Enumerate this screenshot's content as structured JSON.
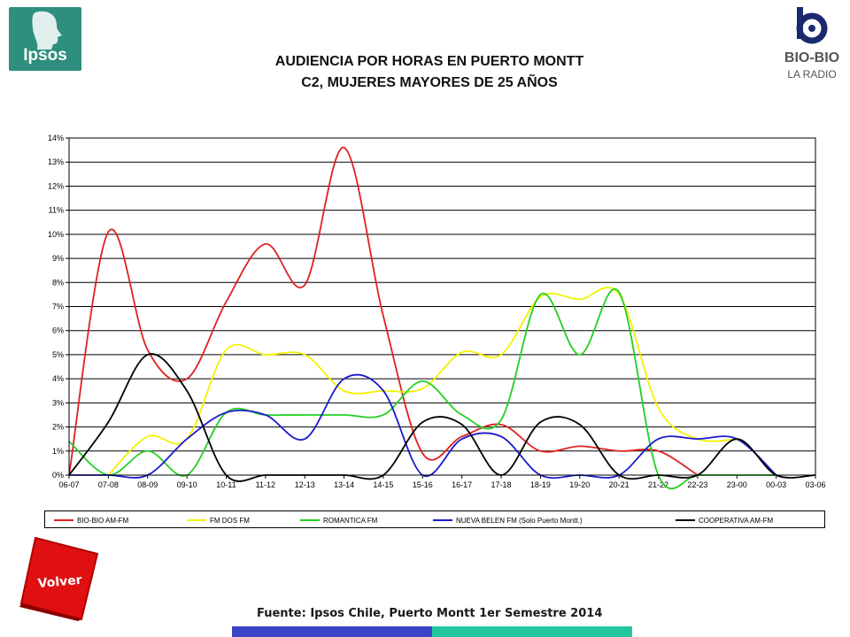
{
  "branding": {
    "ipsos_logo_text": "Ipsos",
    "radio_logo_name": "BIO-BIO",
    "radio_logo_sub": "LA RADIO"
  },
  "title_line1": "AUDIENCIA POR HORAS EN PUERTO MONTT",
  "title_line2": "C2, MUJERES MAYORES DE 25 AÑOS",
  "footer": {
    "source": "Fuente: Ipsos Chile, Puerto Montt 1er Semestre 2014",
    "back_button_label": "Volver"
  },
  "colors": {
    "grid": "#000000",
    "bar_left": "#3b43c6",
    "bar_right": "#22c7a0",
    "ipsos_green": "#2f8f7f",
    "volver_red": "#e01010"
  },
  "chart_data": {
    "type": "line",
    "title": "",
    "xlabel": "",
    "ylabel": "",
    "ylim": [
      0,
      14
    ],
    "y_ticks": [
      "0%",
      "1%",
      "2%",
      "3%",
      "4%",
      "5%",
      "6%",
      "7%",
      "8%",
      "9%",
      "10%",
      "11%",
      "12%",
      "13%",
      "14%"
    ],
    "grid": true,
    "legend_position": "bottom",
    "categories": [
      "06-07",
      "07-08",
      "08-09",
      "09-10",
      "10-11",
      "11-12",
      "12-13",
      "13-14",
      "14-15",
      "15-16",
      "16-17",
      "17-18",
      "18-19",
      "19-20",
      "20-21",
      "21-22",
      "22-23",
      "23-00",
      "00-03",
      "03-06"
    ],
    "series": [
      {
        "name": "BIO-BIO AM-FM",
        "color": "#e02020",
        "values": [
          0,
          10.1,
          5.2,
          4.0,
          7.2,
          9.6,
          7.9,
          13.6,
          6.6,
          0.9,
          1.6,
          2.1,
          1.0,
          1.2,
          1.0,
          1.0,
          0.0,
          null,
          null,
          null
        ]
      },
      {
        "name": "FM DOS FM",
        "color": "#f2f200",
        "values": [
          null,
          0.0,
          1.6,
          1.5,
          5.2,
          5.0,
          5.0,
          3.5,
          3.5,
          3.6,
          5.1,
          5.0,
          7.4,
          7.3,
          7.5,
          2.8,
          1.5,
          1.5,
          null,
          null
        ]
      },
      {
        "name": "ROMANTICA FM",
        "color": "#22d022",
        "values": [
          1.4,
          0.0,
          1.0,
          0.0,
          2.6,
          2.5,
          2.5,
          2.5,
          2.5,
          3.9,
          2.5,
          2.3,
          7.5,
          5.0,
          7.6,
          0.0,
          0.0,
          0.0,
          0.0,
          null
        ]
      },
      {
        "name": "NUEVA BELEN FM  (Solo Puerto Montt.)",
        "color": "#1a1acc",
        "values": [
          0.0,
          0.0,
          0.0,
          1.5,
          2.6,
          2.5,
          1.5,
          4.0,
          3.5,
          0.0,
          1.5,
          1.6,
          0.0,
          0.0,
          0.0,
          1.5,
          1.5,
          1.5,
          0.0,
          null
        ]
      },
      {
        "name": "COOPERATIVA AM-FM",
        "color": "#000000",
        "values": [
          0.0,
          2.2,
          5.0,
          3.5,
          0.0,
          0.0,
          0.0,
          0.0,
          0.0,
          2.2,
          2.1,
          0.0,
          2.2,
          2.1,
          0.0,
          0.0,
          0.0,
          1.5,
          0.0,
          0.0
        ]
      }
    ]
  }
}
